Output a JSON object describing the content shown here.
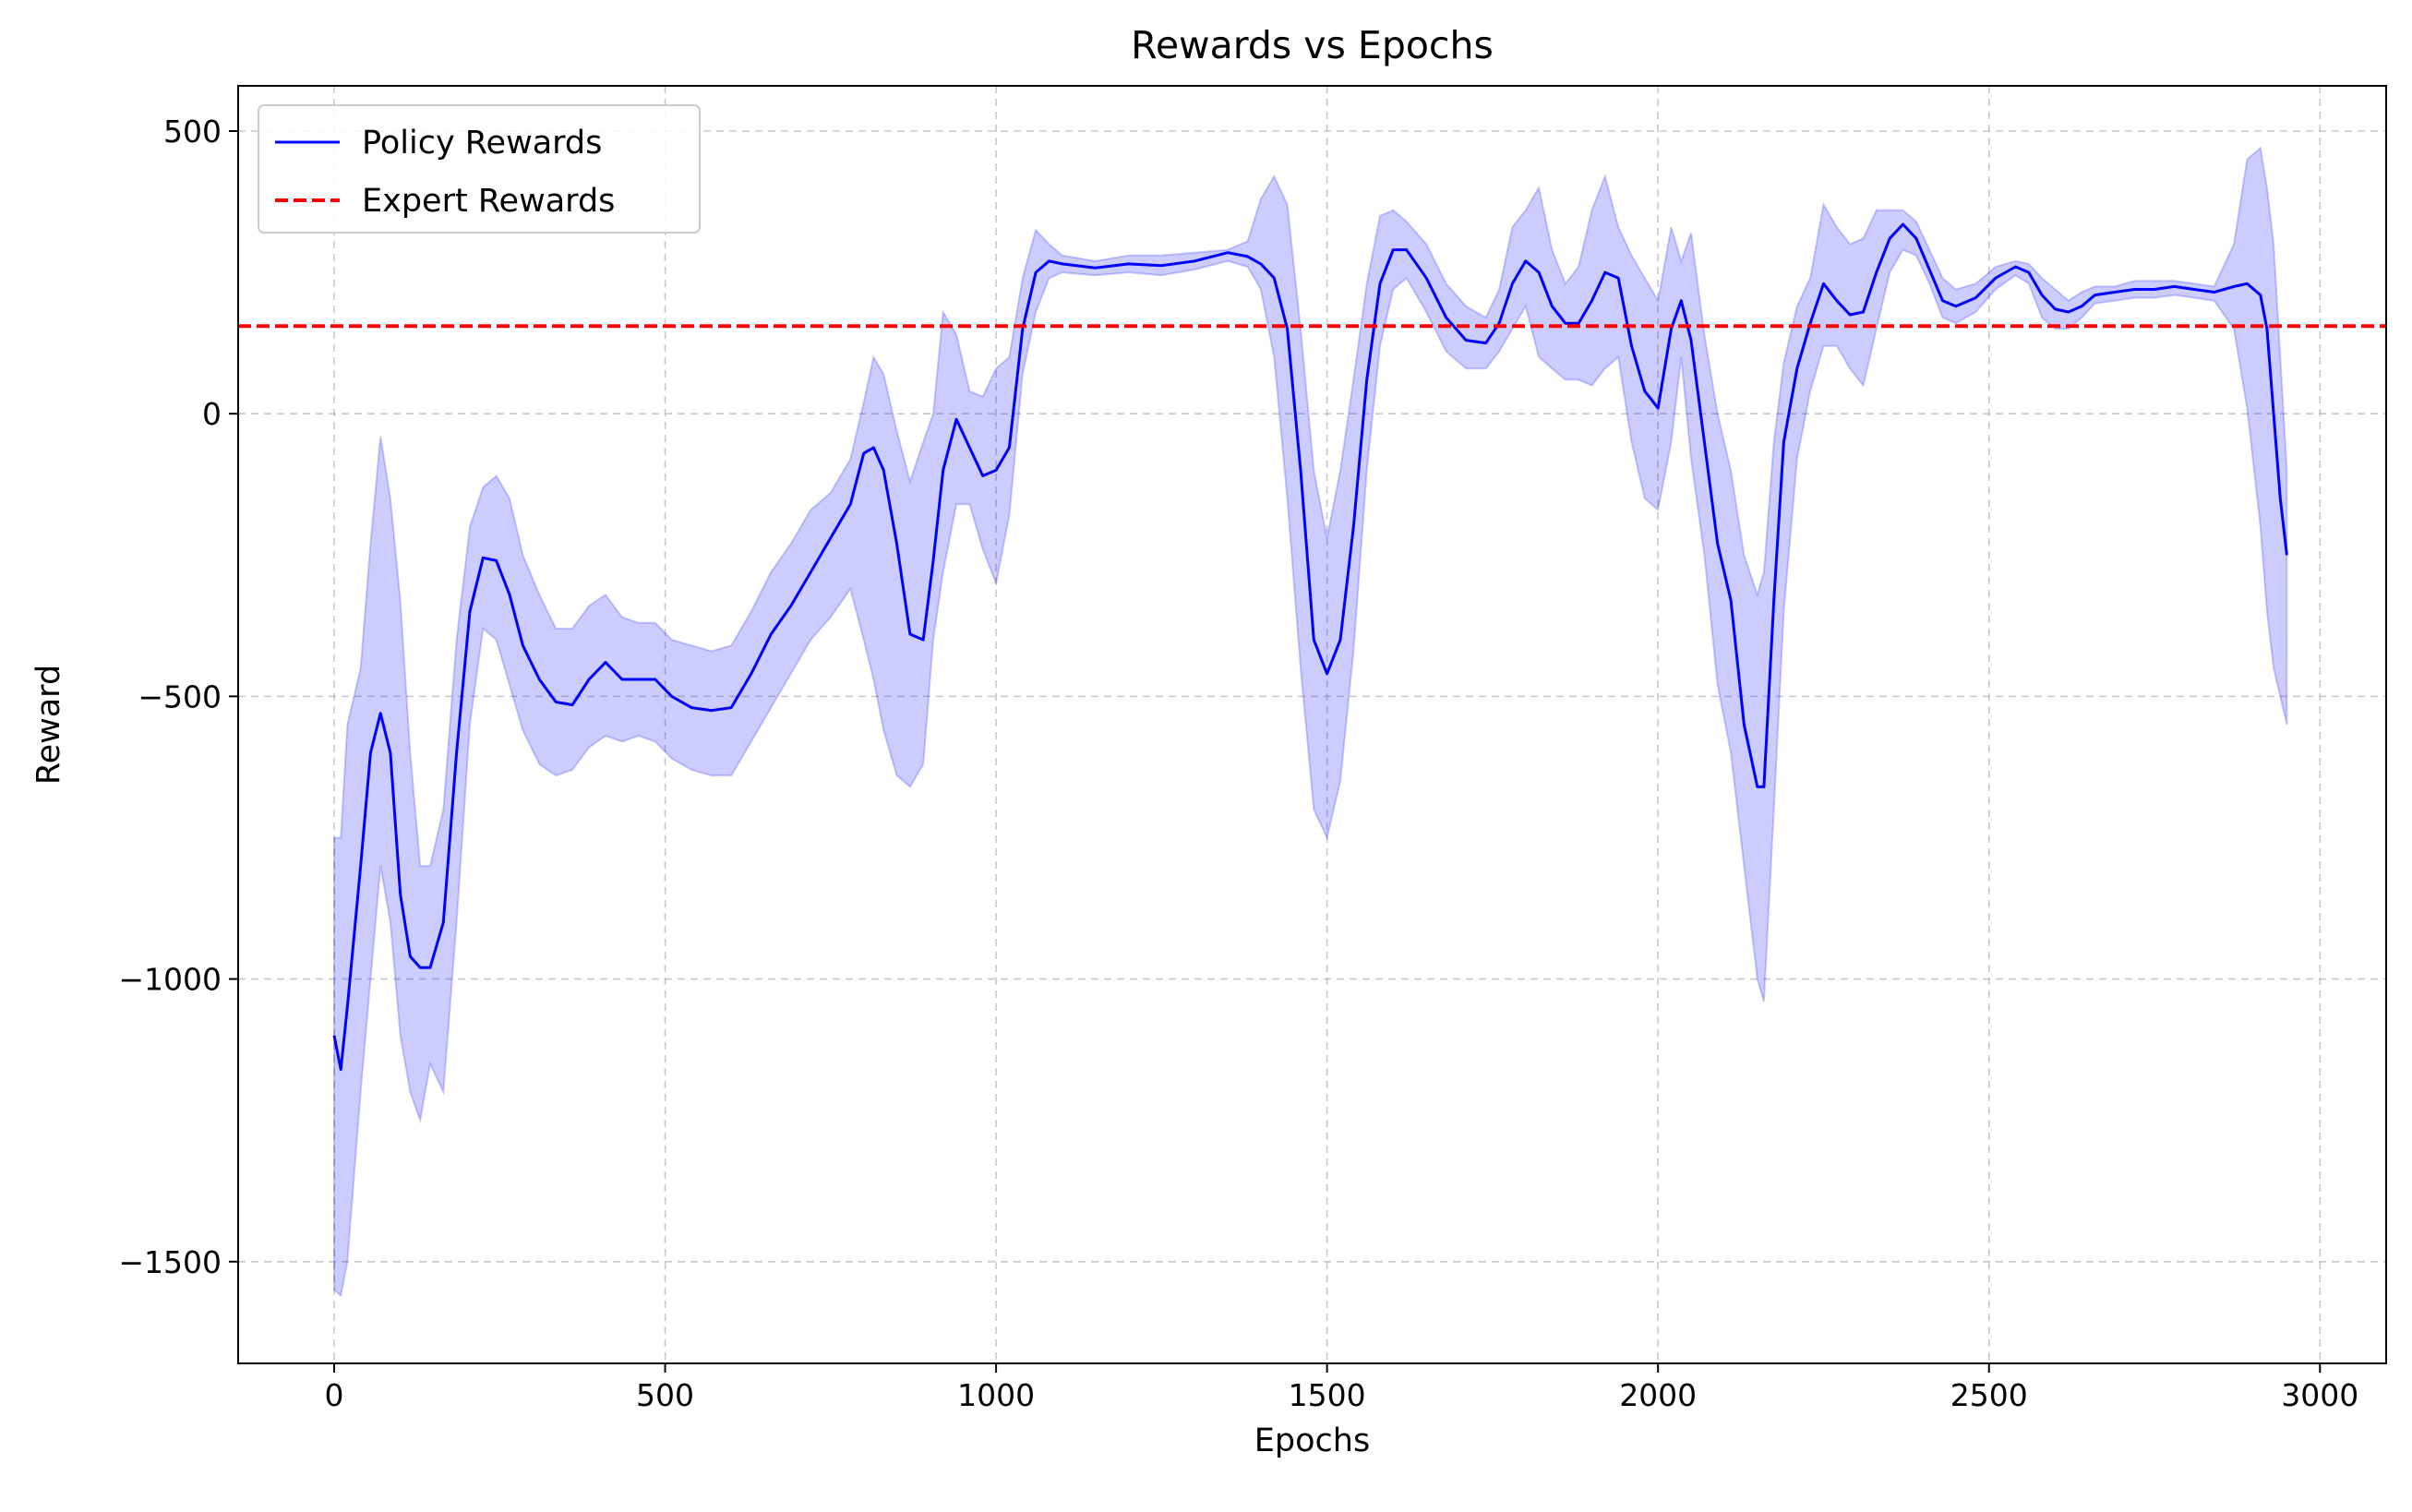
{
  "chart_data": {
    "type": "line",
    "title": "Rewards vs Epochs",
    "xlabel": "Epochs",
    "ylabel": "Reward",
    "xlim": [
      -145,
      3100
    ],
    "ylim": [
      -1680,
      580
    ],
    "xticks": [
      0,
      500,
      1000,
      1500,
      2000,
      2500,
      3000
    ],
    "xtick_labels": [
      "0",
      "500",
      "1000",
      "1500",
      "2000",
      "2500",
      "3000"
    ],
    "yticks": [
      500,
      0,
      -500,
      -1000,
      -1500
    ],
    "ytick_labels": [
      "500",
      "0",
      "−500",
      "−1000",
      "−1500"
    ],
    "grid": true,
    "legend_position": "upper-left",
    "colors": {
      "policy": "#0000ff",
      "band": "#0000ff",
      "expert": "#ff0000",
      "grid": "#b0b0b0"
    },
    "series": [
      {
        "name": "Policy Rewards",
        "style": "solid",
        "x": [
          0,
          10,
          20,
          40,
          55,
          70,
          85,
          100,
          115,
          130,
          145,
          165,
          185,
          205,
          225,
          245,
          265,
          285,
          310,
          335,
          360,
          385,
          410,
          435,
          460,
          485,
          510,
          540,
          570,
          600,
          630,
          660,
          690,
          720,
          750,
          780,
          800,
          815,
          830,
          850,
          870,
          890,
          905,
          920,
          940,
          960,
          980,
          1000,
          1020,
          1040,
          1060,
          1080,
          1100,
          1150,
          1200,
          1250,
          1300,
          1350,
          1380,
          1400,
          1420,
          1440,
          1460,
          1480,
          1500,
          1520,
          1540,
          1560,
          1580,
          1600,
          1620,
          1650,
          1680,
          1710,
          1740,
          1760,
          1780,
          1800,
          1820,
          1840,
          1860,
          1880,
          1900,
          1920,
          1940,
          1960,
          1980,
          2000,
          2020,
          2035,
          2050,
          2070,
          2090,
          2110,
          2130,
          2150,
          2160,
          2175,
          2190,
          2210,
          2230,
          2250,
          2270,
          2290,
          2310,
          2330,
          2350,
          2370,
          2390,
          2410,
          2430,
          2450,
          2480,
          2510,
          2540,
          2560,
          2580,
          2600,
          2620,
          2640,
          2660,
          2690,
          2720,
          2750,
          2780,
          2810,
          2840,
          2870,
          2890,
          2910,
          2920,
          2930,
          2940,
          2950
        ],
        "y": [
          -1100,
          -1160,
          -1050,
          -800,
          -600,
          -530,
          -600,
          -850,
          -960,
          -980,
          -980,
          -900,
          -600,
          -350,
          -255,
          -260,
          -320,
          -410,
          -470,
          -510,
          -515,
          -470,
          -440,
          -470,
          -470,
          -470,
          -500,
          -520,
          -525,
          -520,
          -460,
          -390,
          -340,
          -280,
          -220,
          -160,
          -70,
          -60,
          -100,
          -230,
          -390,
          -400,
          -260,
          -100,
          -10,
          -60,
          -110,
          -100,
          -60,
          150,
          250,
          270,
          265,
          258,
          265,
          262,
          270,
          285,
          278,
          265,
          240,
          150,
          -100,
          -400,
          -460,
          -400,
          -200,
          60,
          230,
          290,
          290,
          240,
          170,
          130,
          125,
          160,
          230,
          270,
          250,
          190,
          160,
          160,
          200,
          250,
          240,
          120,
          40,
          10,
          150,
          200,
          130,
          -50,
          -230,
          -330,
          -550,
          -660,
          -660,
          -330,
          -50,
          80,
          160,
          230,
          200,
          175,
          180,
          250,
          310,
          335,
          310,
          255,
          200,
          190,
          205,
          240,
          260,
          250,
          210,
          185,
          180,
          190,
          210,
          215,
          220,
          220,
          225,
          220,
          215,
          225,
          230,
          210,
          150,
          0,
          -150,
          -250
        ],
        "band_upper": [
          -750,
          -750,
          -550,
          -450,
          -230,
          -40,
          -150,
          -330,
          -600,
          -800,
          -800,
          -700,
          -400,
          -200,
          -130,
          -110,
          -150,
          -250,
          -320,
          -380,
          -380,
          -340,
          -320,
          -360,
          -370,
          -370,
          -400,
          -410,
          -420,
          -410,
          -350,
          -280,
          -230,
          -170,
          -140,
          -80,
          20,
          100,
          70,
          -30,
          -120,
          -50,
          0,
          180,
          140,
          40,
          30,
          80,
          100,
          240,
          325,
          300,
          280,
          270,
          280,
          280,
          285,
          290,
          305,
          380,
          420,
          370,
          150,
          -100,
          -220,
          -100,
          60,
          230,
          350,
          360,
          340,
          300,
          230,
          190,
          170,
          220,
          330,
          360,
          400,
          290,
          230,
          260,
          360,
          420,
          330,
          280,
          240,
          200,
          330,
          270,
          320,
          140,
          0,
          -100,
          -250,
          -320,
          -280,
          -50,
          90,
          190,
          240,
          370,
          330,
          300,
          310,
          360,
          360,
          360,
          340,
          290,
          240,
          220,
          230,
          260,
          270,
          265,
          240,
          220,
          200,
          215,
          225,
          225,
          235,
          235,
          235,
          230,
          225,
          300,
          450,
          470,
          400,
          300,
          100,
          -100
        ],
        "band_lower": [
          -1550,
          -1560,
          -1500,
          -1200,
          -1000,
          -800,
          -900,
          -1100,
          -1200,
          -1250,
          -1150,
          -1200,
          -900,
          -550,
          -380,
          -400,
          -480,
          -560,
          -620,
          -640,
          -630,
          -590,
          -570,
          -580,
          -570,
          -580,
          -610,
          -630,
          -640,
          -640,
          -580,
          -520,
          -460,
          -400,
          -360,
          -310,
          -400,
          -470,
          -560,
          -640,
          -660,
          -620,
          -400,
          -280,
          -160,
          -160,
          -240,
          -300,
          -180,
          70,
          180,
          240,
          250,
          245,
          250,
          245,
          255,
          270,
          260,
          220,
          100,
          -150,
          -450,
          -700,
          -750,
          -650,
          -420,
          -100,
          120,
          220,
          240,
          180,
          110,
          80,
          80,
          110,
          150,
          190,
          100,
          80,
          60,
          60,
          50,
          80,
          100,
          -50,
          -150,
          -170,
          -50,
          100,
          -80,
          -250,
          -480,
          -600,
          -800,
          -1000,
          -1040,
          -700,
          -350,
          -80,
          40,
          120,
          120,
          80,
          50,
          150,
          250,
          290,
          280,
          230,
          170,
          160,
          180,
          220,
          245,
          230,
          170,
          150,
          150,
          170,
          195,
          200,
          205,
          205,
          210,
          205,
          200,
          150,
          10,
          -200,
          -350,
          -450,
          -500,
          -550
        ]
      },
      {
        "name": "Expert Rewards",
        "style": "dashed",
        "y": 155
      }
    ]
  }
}
